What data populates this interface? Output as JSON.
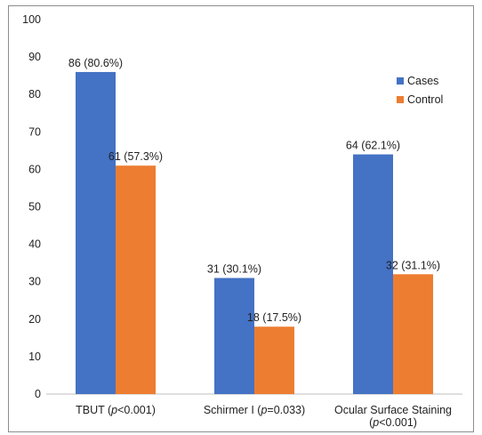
{
  "chart_data": {
    "type": "bar",
    "title": "",
    "xlabel": "",
    "ylabel": "",
    "ylim": [
      0,
      100
    ],
    "yticks": [
      0,
      10,
      20,
      30,
      40,
      50,
      60,
      70,
      80,
      90,
      100
    ],
    "grid": false,
    "legend_position": "right",
    "categories": [
      {
        "label": "TBUT (",
        "italic": "p",
        "suffix": "<0.001)"
      },
      {
        "label": "Schirmer I (",
        "italic": "p",
        "suffix": "=0.033)"
      },
      {
        "label": "Ocular Surface Staining",
        "line2_prefix": "(",
        "italic": "p",
        "suffix": "<0.001)"
      }
    ],
    "series": [
      {
        "name": "Cases",
        "color": "#4472C4",
        "values": [
          86,
          31,
          64
        ],
        "data_labels": [
          "86 (80.6%)",
          "31 (30.1%)",
          "64 (62.1%)"
        ]
      },
      {
        "name": "Control",
        "color": "#ED7D31",
        "values": [
          61,
          18,
          32
        ],
        "data_labels": [
          "61 (57.3%)",
          "18 (17.5%)",
          "32 (31.1%)"
        ]
      }
    ]
  }
}
